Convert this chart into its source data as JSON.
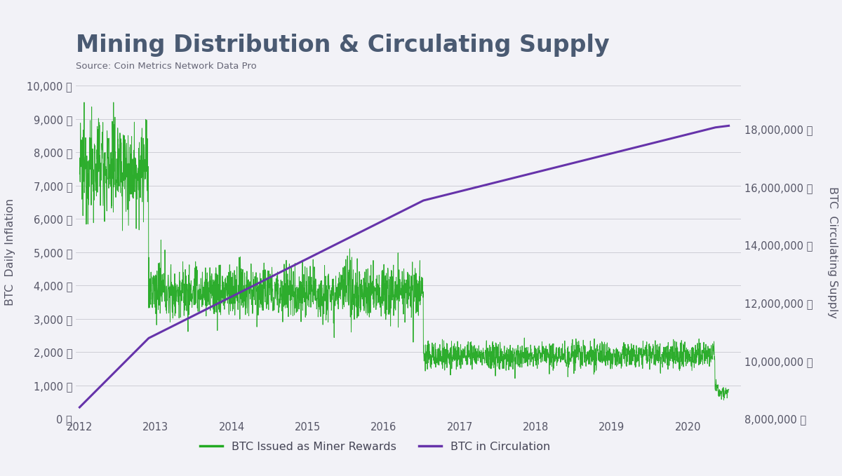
{
  "title": "Mining Distribution & Circulating Supply",
  "subtitle": "Source: Coin Metrics Network Data Pro",
  "title_color": "#4a5a72",
  "bg_color": "#f2f2f7",
  "plot_bg_color": "#f2f2f7",
  "green_color": "#22aa22",
  "purple_color": "#6633aa",
  "left_ylabel": "BTC  Daily Inflation",
  "right_ylabel": "BTC  Circulating Supply",
  "left_ylim": [
    0,
    10000
  ],
  "right_ylim": [
    8000000,
    19500000
  ],
  "left_yticks": [
    0,
    1000,
    2000,
    3000,
    4000,
    5000,
    6000,
    7000,
    8000,
    9000,
    10000
  ],
  "right_yticks": [
    8000000,
    10000000,
    12000000,
    14000000,
    16000000,
    18000000
  ],
  "legend_labels": [
    "BTC Issued as Miner Rewards",
    "BTC in Circulation"
  ],
  "x_ticks": [
    2012,
    2013,
    2014,
    2015,
    2016,
    2017,
    2018,
    2019,
    2020
  ],
  "xlim": [
    2011.95,
    2020.7
  ]
}
